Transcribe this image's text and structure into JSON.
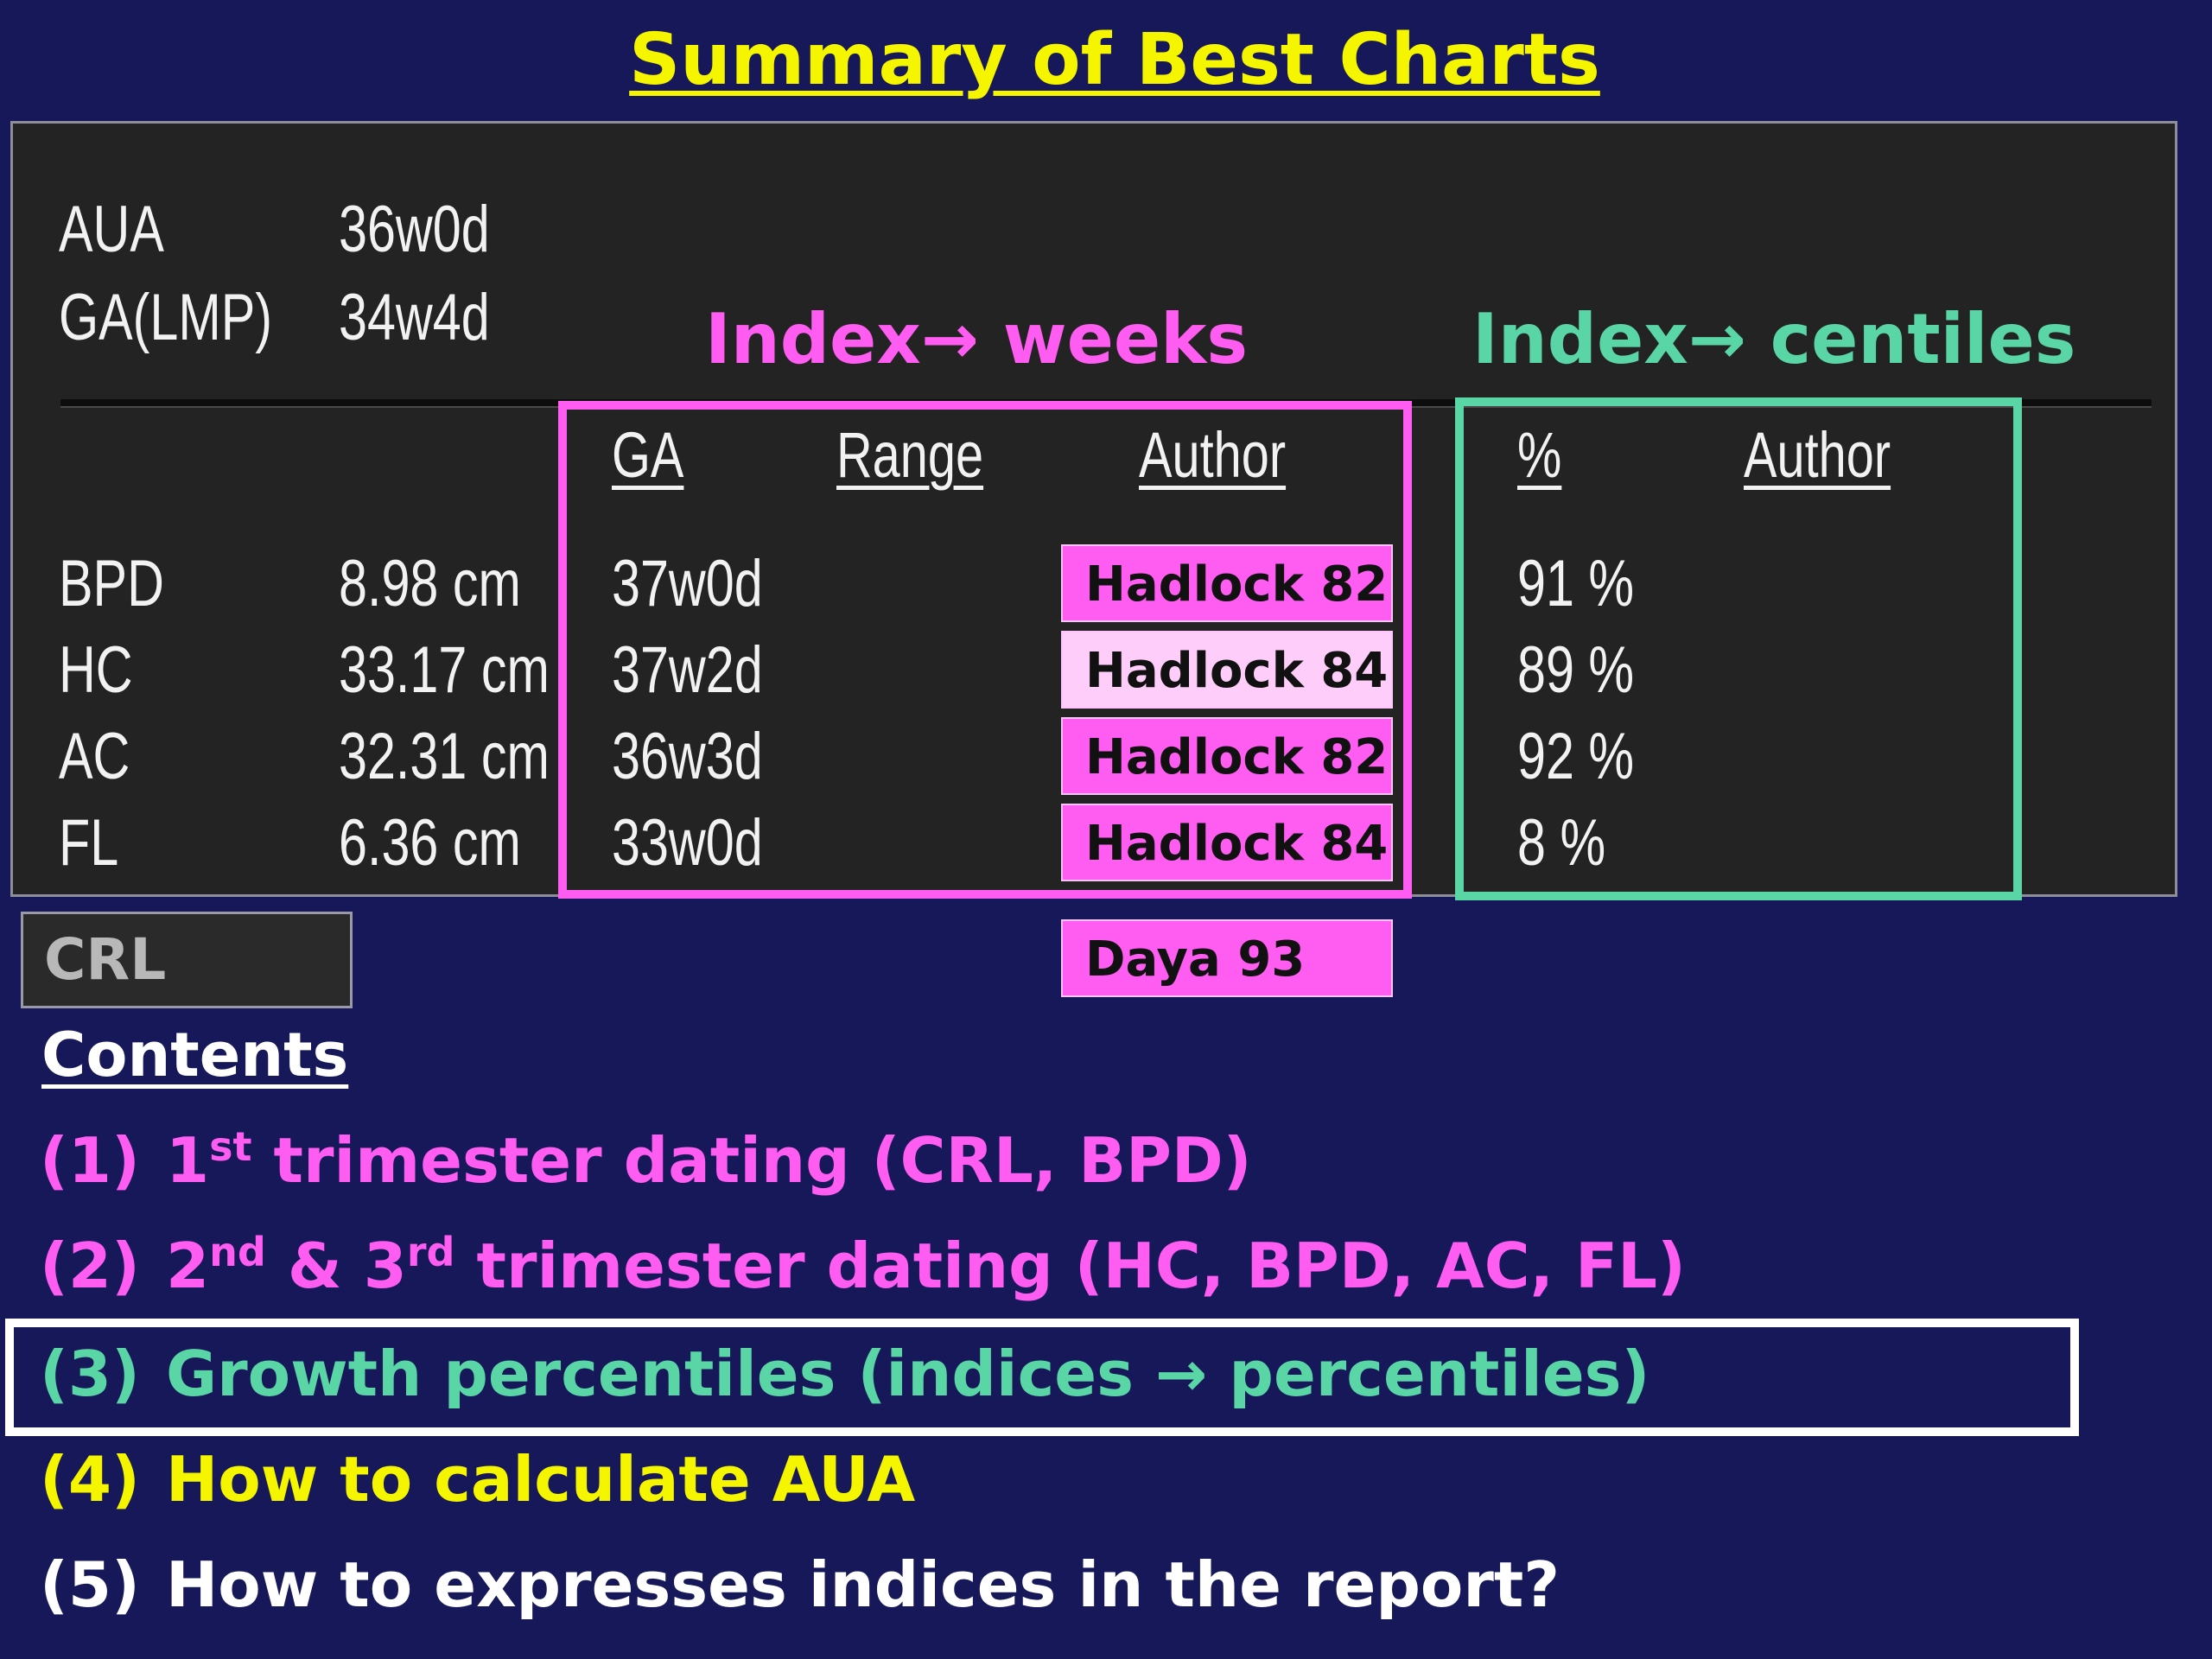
{
  "title": "Summary of Best Charts",
  "top_rows": [
    {
      "label": "AUA",
      "value": "36w0d"
    },
    {
      "label": "GA(LMP)",
      "value": "34w4d"
    }
  ],
  "index_weeks_heading": {
    "text": "Index",
    "arrow": "→",
    "suffix": "weeks"
  },
  "index_centiles_heading": {
    "text": "Index",
    "arrow": "→",
    "suffix": "centiles"
  },
  "columns": {
    "ga": "GA",
    "range": "Range",
    "author": "Author",
    "percent": "%",
    "author2": "Author"
  },
  "measurements": [
    {
      "name": "BPD",
      "value": "8.98 cm",
      "ga": "37w0d",
      "author": "Hadlock 82",
      "percent": "91 %"
    },
    {
      "name": "HC",
      "value": "33.17 cm",
      "ga": "37w2d",
      "author": "Hadlock 84",
      "percent": "89 %"
    },
    {
      "name": "AC",
      "value": "32.31 cm",
      "ga": "36w3d",
      "author": "Hadlock 82",
      "percent": "92 %"
    },
    {
      "name": "FL",
      "value": "6.36 cm",
      "ga": "33w0d",
      "author": "Hadlock 84",
      "percent": "8 %"
    }
  ],
  "crl": {
    "label": "CRL",
    "author": "Daya 93"
  },
  "contents": {
    "heading": "Contents",
    "items": [
      {
        "num": "(1)",
        "pre": "1",
        "sup": "st",
        "text": " trimester dating (CRL, BPD)"
      },
      {
        "num": "(2)",
        "pre": "2",
        "sup": "nd",
        "mid": " & 3",
        "sup2": "rd",
        "text": " trimester dating (HC, BPD, AC, FL)"
      },
      {
        "num": "(3)",
        "text": "Growth percentiles (indices ",
        "arrow": "→",
        "text2": " percentiles)"
      },
      {
        "num": "(4)",
        "text": "How to calculate AUA"
      },
      {
        "num": "(5)",
        "text": "How to expresses indices in the report?"
      }
    ]
  },
  "colors": {
    "background": "#16185a",
    "title": "#f5f500",
    "pink": "#ff5cf2",
    "green": "#5ad5a6",
    "yellow": "#f5f500",
    "white": "#ffffff"
  }
}
